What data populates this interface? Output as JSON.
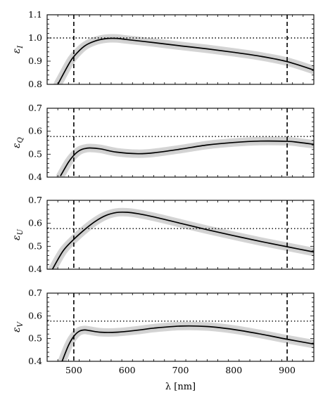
{
  "chart_data": [
    {
      "type": "line",
      "ylabel_main": "ε",
      "ylabel_sub": "I",
      "ylim": [
        0.8,
        1.1
      ],
      "yticks": [
        0.8,
        0.9,
        1.0,
        1.1
      ],
      "ytick_labels": [
        "0.8",
        "0.9",
        "1.0",
        "1.1"
      ],
      "ref_line": 1.0,
      "x": [
        470,
        490,
        500,
        520,
        540,
        560,
        580,
        600,
        650,
        700,
        750,
        800,
        850,
        900,
        950
      ],
      "y": [
        0.8,
        0.885,
        0.92,
        0.965,
        0.987,
        0.997,
        0.998,
        0.993,
        0.98,
        0.966,
        0.953,
        0.938,
        0.921,
        0.898,
        0.862
      ]
    },
    {
      "type": "line",
      "ylabel_main": "ε",
      "ylabel_sub": "Q",
      "ylim": [
        0.4,
        0.7
      ],
      "yticks": [
        0.4,
        0.5,
        0.6,
        0.7
      ],
      "ytick_labels": [
        "0.4",
        "0.5",
        "0.6",
        "0.7"
      ],
      "ref_line": 0.577,
      "x": [
        475,
        490,
        500,
        510,
        520,
        530,
        550,
        580,
        620,
        650,
        700,
        750,
        800,
        850,
        900,
        920,
        950
      ],
      "y": [
        0.405,
        0.465,
        0.495,
        0.515,
        0.524,
        0.527,
        0.523,
        0.509,
        0.502,
        0.506,
        0.522,
        0.54,
        0.551,
        0.557,
        0.556,
        0.552,
        0.543
      ]
    },
    {
      "type": "line",
      "ylabel_main": "ε",
      "ylabel_sub": "U",
      "ylim": [
        0.4,
        0.7
      ],
      "yticks": [
        0.4,
        0.5,
        0.6,
        0.7
      ],
      "ytick_labels": [
        "0.4",
        "0.5",
        "0.6",
        "0.7"
      ],
      "ref_line": 0.577,
      "x": [
        460,
        480,
        500,
        520,
        540,
        560,
        580,
        600,
        620,
        650,
        700,
        750,
        800,
        850,
        900,
        950
      ],
      "y": [
        0.4,
        0.48,
        0.53,
        0.572,
        0.608,
        0.634,
        0.647,
        0.648,
        0.642,
        0.628,
        0.6,
        0.572,
        0.546,
        0.521,
        0.498,
        0.475
      ]
    },
    {
      "type": "line",
      "ylabel_main": "ε",
      "ylabel_sub": "V",
      "ylim": [
        0.4,
        0.7
      ],
      "yticks": [
        0.4,
        0.5,
        0.6,
        0.7
      ],
      "ytick_labels": [
        "0.4",
        "0.5",
        "0.6",
        "0.7"
      ],
      "ref_line": 0.577,
      "x": [
        478,
        490,
        500,
        510,
        520,
        530,
        550,
        580,
        620,
        650,
        700,
        750,
        800,
        850,
        900,
        950
      ],
      "y": [
        0.4,
        0.47,
        0.51,
        0.532,
        0.538,
        0.535,
        0.528,
        0.528,
        0.537,
        0.546,
        0.555,
        0.553,
        0.54,
        0.52,
        0.497,
        0.476
      ]
    }
  ],
  "x_axis": {
    "xlim": [
      450,
      950
    ],
    "xticks": [
      500,
      600,
      700,
      800,
      900
    ],
    "xtick_labels": [
      "500",
      "600",
      "700",
      "800",
      "900"
    ],
    "xlabel": "λ [nm]",
    "vlines": [
      500,
      900
    ]
  }
}
